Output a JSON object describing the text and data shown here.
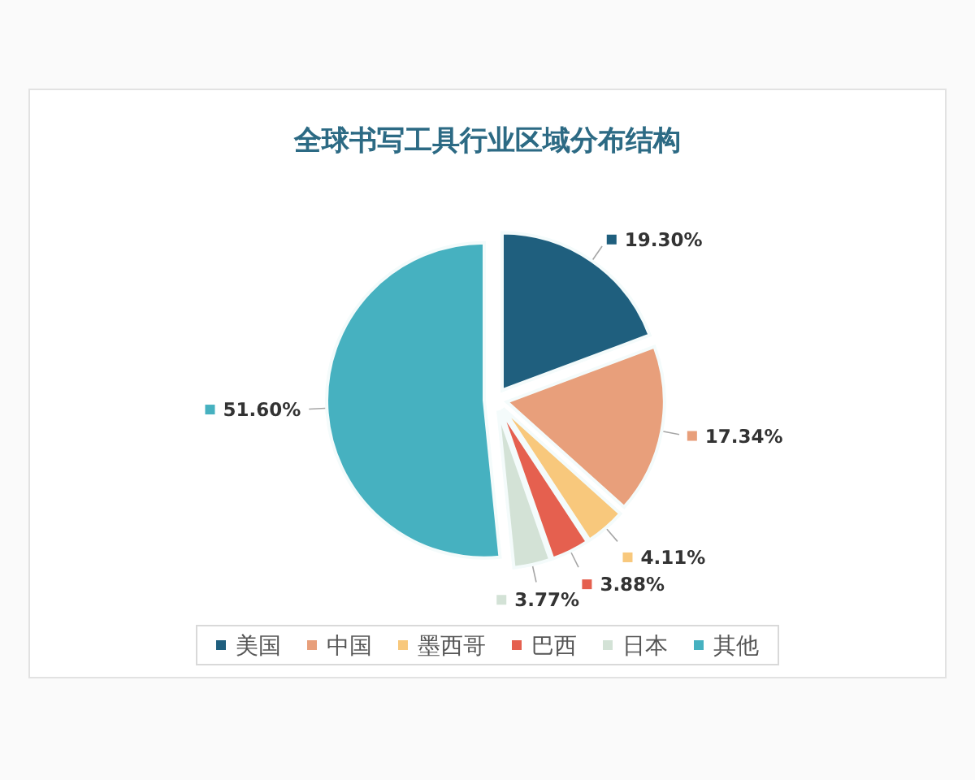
{
  "chart_data": {
    "type": "pie",
    "title": "全球书写工具行业区域分布结构",
    "categories": [
      "美国",
      "中国",
      "墨西哥",
      "巴西",
      "日本",
      "其他"
    ],
    "values": [
      19.3,
      17.34,
      4.11,
      3.88,
      3.77,
      51.6
    ],
    "colors": [
      "#1f5f7e",
      "#e89f7b",
      "#f8c87c",
      "#e5604f",
      "#d3e2d6",
      "#46b1c0"
    ],
    "value_labels": [
      "19.30%",
      "17.34%",
      "4.11%",
      "3.88%",
      "3.77%",
      "51.60%"
    ],
    "legend": "bottom"
  }
}
